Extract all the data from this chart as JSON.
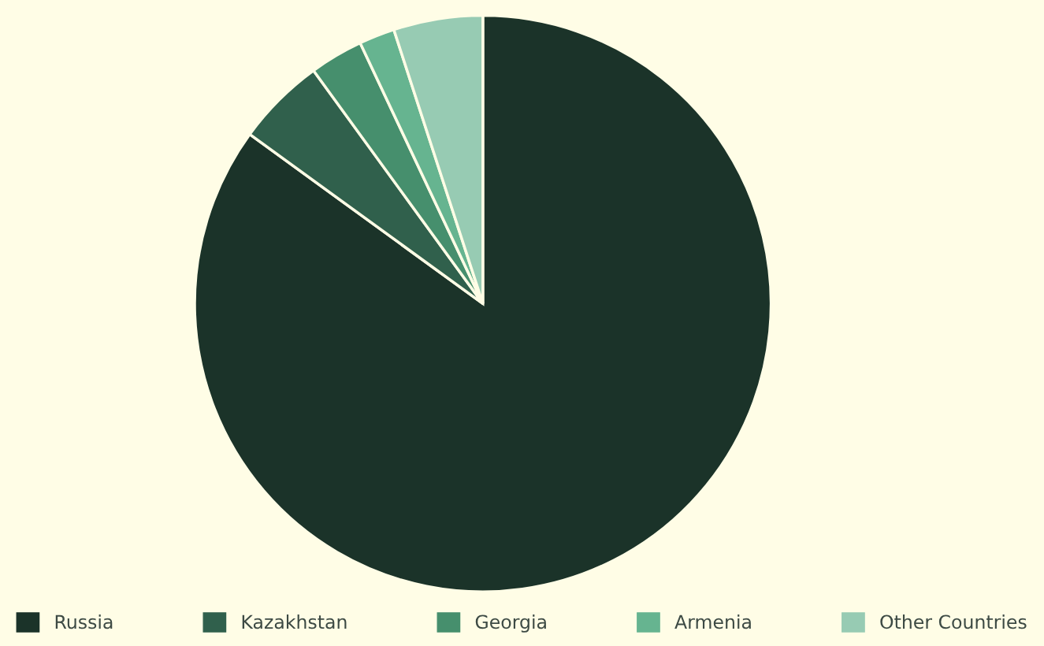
{
  "chart_data": {
    "type": "pie",
    "categories": [
      "Russia",
      "Kazakhstan",
      "Georgia",
      "Armenia",
      "Other Countries"
    ],
    "values": [
      85,
      5,
      3,
      2,
      5
    ],
    "colors": [
      "#1b3329",
      "#30604c",
      "#468f6d",
      "#66b490",
      "#97cbb3"
    ],
    "legend": "bottom"
  }
}
